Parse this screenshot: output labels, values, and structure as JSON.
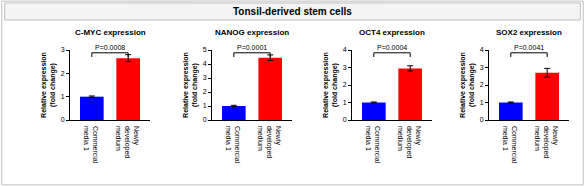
{
  "title": "Tonsil-derived stem cells",
  "chart_data": [
    {
      "type": "bar",
      "title": "C-MYC expression",
      "categories": [
        "Commercial\nmedia 1",
        "Newly\ndeveloped\nmedium"
      ],
      "values": [
        1.0,
        2.65
      ],
      "errors": [
        0.03,
        0.15
      ],
      "colors": [
        "#0000ff",
        "#ff0000"
      ],
      "y_label": "Relative expression\n(fold change)",
      "ylim": [
        0,
        3
      ],
      "yticks": [
        0,
        1,
        2,
        3
      ],
      "annotation": "P=0.0008",
      "grid": false
    },
    {
      "type": "bar",
      "title": "NANOG expression",
      "categories": [
        "Commercial\nmedia 1",
        "Newly\ndeveloped\nmedium"
      ],
      "values": [
        1.0,
        4.45
      ],
      "errors": [
        0.05,
        0.2
      ],
      "colors": [
        "#0000ff",
        "#ff0000"
      ],
      "y_label": "Relative expression\n(fold change)",
      "ylim": [
        0,
        5
      ],
      "yticks": [
        0,
        1,
        2,
        3,
        4,
        5
      ],
      "annotation": "P=0.0001",
      "grid": false
    },
    {
      "type": "bar",
      "title": "OCT4 expression",
      "categories": [
        "Commercial\nmedia 1",
        "Newly\ndeveloped\nmedium"
      ],
      "values": [
        1.0,
        2.95
      ],
      "errors": [
        0.03,
        0.15
      ],
      "colors": [
        "#0000ff",
        "#ff0000"
      ],
      "y_label": "Relative expression\n(fold change)",
      "ylim": [
        0,
        4
      ],
      "yticks": [
        0,
        1,
        2,
        3,
        4
      ],
      "annotation": "P=0.0004",
      "grid": false
    },
    {
      "type": "bar",
      "title": "SOX2 expression",
      "categories": [
        "Commercial\nmedia 1",
        "Newly\ndeveloped\nmedium"
      ],
      "values": [
        1.0,
        2.7
      ],
      "errors": [
        0.03,
        0.25
      ],
      "colors": [
        "#0000ff",
        "#ff0000"
      ],
      "y_label": "Relative expression\n(fold change)",
      "ylim": [
        0,
        4
      ],
      "yticks": [
        0,
        1,
        2,
        3,
        4
      ],
      "annotation": "P=0.0041",
      "grid": false
    }
  ]
}
